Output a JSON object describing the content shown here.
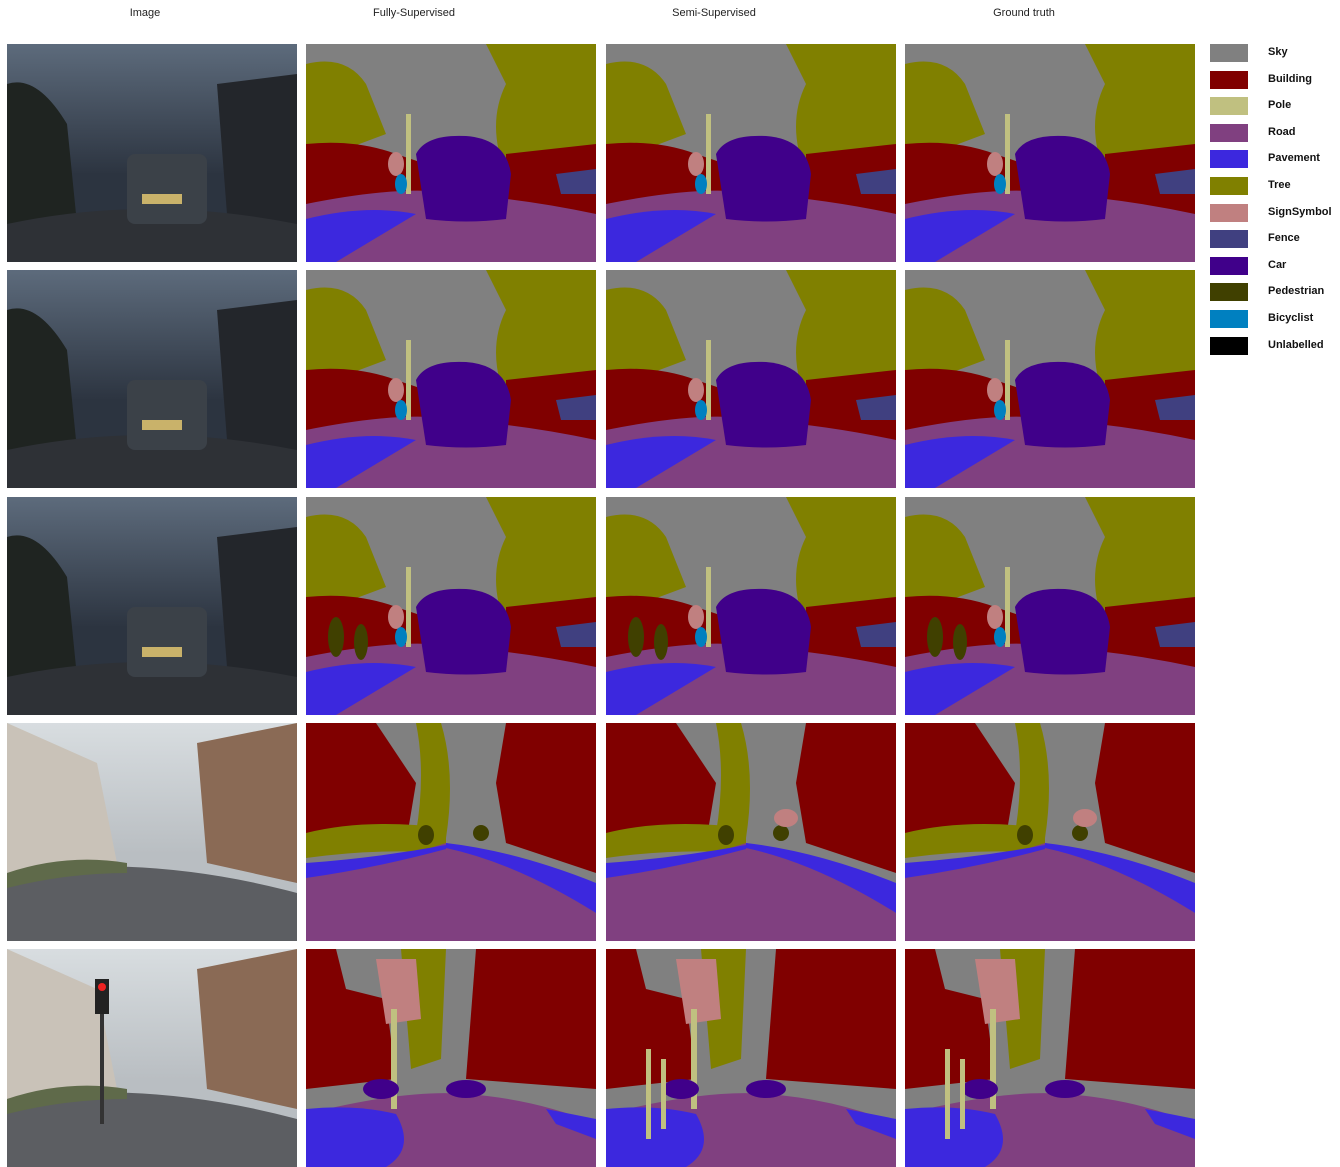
{
  "columns": [
    {
      "label": "Image"
    },
    {
      "label": "Fully-Supervised"
    },
    {
      "label": "Semi-Supervised"
    },
    {
      "label": "Ground truth"
    }
  ],
  "legend": [
    {
      "label": "Sky",
      "color": "#808080"
    },
    {
      "label": "Building",
      "color": "#800000"
    },
    {
      "label": "Pole",
      "color": "#C0C080"
    },
    {
      "label": "Road",
      "color": "#804080"
    },
    {
      "label": "Pavement",
      "color": "#3C28DE"
    },
    {
      "label": "Tree",
      "color": "#808000"
    },
    {
      "label": "SignSymbol",
      "color": "#C08080"
    },
    {
      "label": "Fence",
      "color": "#404080"
    },
    {
      "label": "Car",
      "color": "#40008A"
    },
    {
      "label": "Pedestrian",
      "color": "#404000"
    },
    {
      "label": "Bicyclist",
      "color": "#0080C0"
    },
    {
      "label": "Unlabelled",
      "color": "#000000"
    }
  ],
  "rows": 5
}
